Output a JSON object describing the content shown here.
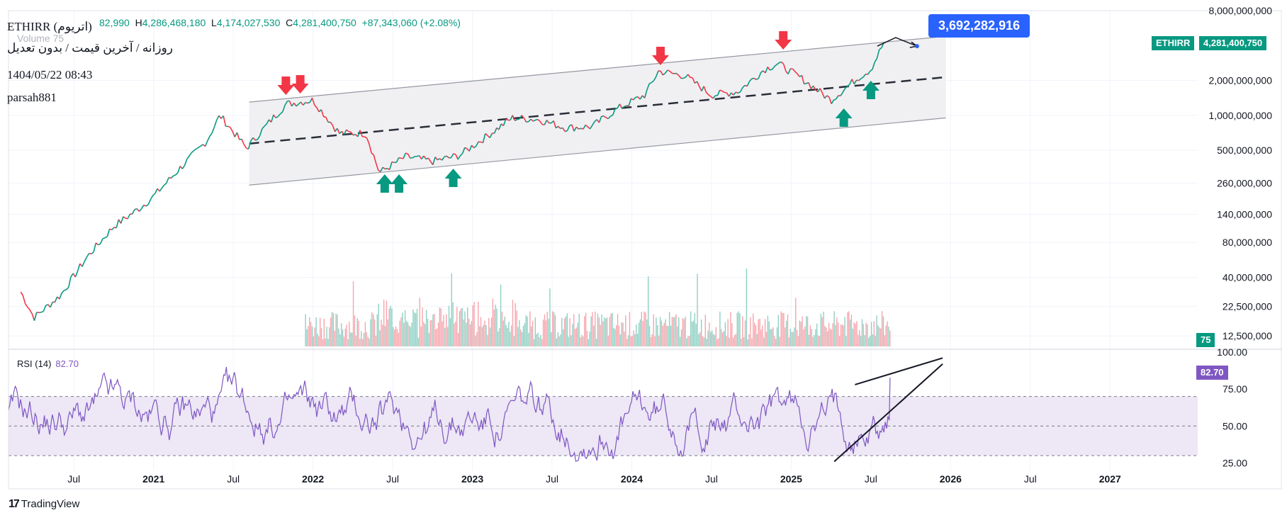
{
  "header": {
    "symbol": "ETHIRR (اتریوم)",
    "interval": "روزانه / آخرین قیمت / بدون تعدیل",
    "datetime": "1404/05/22 08:43",
    "author": "parsah881",
    "open_partial": "82,990",
    "high_label": "H",
    "high": "4,286,468,180",
    "low_label": "L",
    "low": "4,174,027,530",
    "close_label": "C",
    "close": "4,281,400,750",
    "change": "+87,343,060 (+2.08%)",
    "volume_label": "Volume",
    "volume_value": "75"
  },
  "callout": {
    "text": "3,692,282,916"
  },
  "price_tags": {
    "symbol": "ETHIRR",
    "price": "4,281,400,750",
    "volume": "75",
    "rsi": "82.70"
  },
  "rsi": {
    "label": "RSI (14)",
    "value": "82.70",
    "levels": [
      30,
      50,
      70
    ]
  },
  "footer": {
    "brand": "TradingView"
  },
  "colors": {
    "up": "#089981",
    "down": "#f23645",
    "rsi": "#7e57c2",
    "rsi_band": "#ede7f6",
    "channel_fill": "#f0f0f3",
    "callout": "#2962ff"
  },
  "chart_data": [
    {
      "type": "line",
      "title": "ETHIRR (اتریوم)",
      "y_scale": "log",
      "y_ticks": [
        "8,000,000,000",
        "2,000,000,000",
        "1,000,000,000",
        "500,000,000",
        "260,000,000",
        "140,000,000",
        "80,000,000",
        "40,000,000",
        "22,500,000",
        "12,500,000"
      ],
      "x_ticks": [
        "Jul",
        "2021",
        "Jul",
        "2022",
        "Jul",
        "2023",
        "Jul",
        "2024",
        "Jul",
        "2025",
        "Jul",
        "2026",
        "Jul",
        "2027"
      ],
      "series": [
        {
          "x": [
            "2020-03",
            "2020-04",
            "2020-06",
            "2020-08",
            "2020-10",
            "2020-12",
            "2021-01",
            "2021-03",
            "2021-05",
            "2021-06",
            "2021-08",
            "2021-10",
            "2021-11",
            "2022-01",
            "2022-03",
            "2022-05",
            "2022-06",
            "2022-08",
            "2022-10",
            "2022-12",
            "2023-02",
            "2023-04",
            "2023-06",
            "2023-08",
            "2023-10",
            "2023-12",
            "2024-02",
            "2024-03",
            "2024-05",
            "2024-07",
            "2024-09",
            "2024-11",
            "2024-12",
            "2025-02",
            "2025-04",
            "2025-06",
            "2025-07",
            "2025-08"
          ],
          "values": [
            30000000,
            18000000,
            28000000,
            60000000,
            110000000,
            160000000,
            200000000,
            350000000,
            600000000,
            1000000000,
            520000000,
            950000000,
            1250000000,
            1350000000,
            700000000,
            700000000,
            320000000,
            440000000,
            400000000,
            450000000,
            650000000,
            950000000,
            920000000,
            780000000,
            800000000,
            1150000000,
            1500000000,
            2400000000,
            2200000000,
            1500000000,
            1600000000,
            2500000000,
            2800000000,
            2000000000,
            1350000000,
            2100000000,
            2500000000,
            4281400750
          ]
        }
      ],
      "annotations": {
        "resistance_arrows": [
          "2021-12",
          "2021-12",
          "2024-03",
          "2024-12"
        ],
        "support_arrows": [
          "2022-06",
          "2022-07",
          "2022-11",
          "2025-04",
          "2025-07"
        ],
        "channel": "ascending regression channel with dashed midline",
        "projection_target": "3,692,282,916"
      }
    },
    {
      "type": "line",
      "title": "RSI (14)",
      "y_ticks": [
        "100.00",
        "75.00",
        "50.00",
        "25.00"
      ],
      "ylim": [
        20,
        100
      ],
      "last_value": 82.7,
      "annotations": {
        "pattern": "rising wedge"
      }
    }
  ]
}
